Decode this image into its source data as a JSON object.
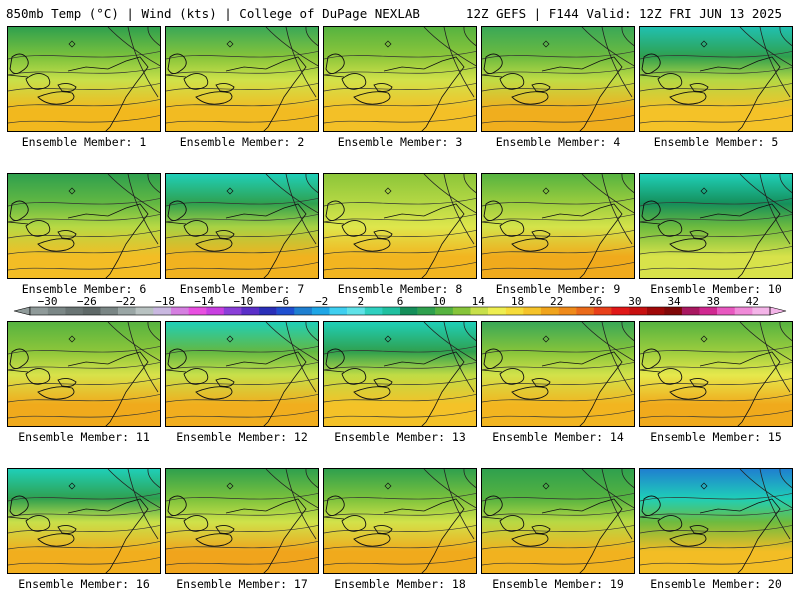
{
  "header": {
    "title": "850mb Temp (°C) | Wind (kts) | College of DuPage NEXLAB",
    "run": "12Z GEFS | F144 Valid: 12Z FRI JUN 13 2025"
  },
  "panels": [
    {
      "label": "Ensemble Member: 1",
      "north_color": "#2fa04e",
      "band1": "#7cc23c",
      "band2": "#c8e04a",
      "south_color": "#f2b81e"
    },
    {
      "label": "Ensemble Member: 2",
      "north_color": "#3aa857",
      "band1": "#86c43a",
      "band2": "#cfe24a",
      "south_color": "#f2bb22"
    },
    {
      "label": "Ensemble Member: 3",
      "north_color": "#56b340",
      "band1": "#8dc63a",
      "band2": "#d2e24a",
      "south_color": "#f3c027"
    },
    {
      "label": "Ensemble Member: 4",
      "north_color": "#3aa857",
      "band1": "#6dbb3f",
      "band2": "#c0dc45",
      "south_color": "#f0ae1e"
    },
    {
      "label": "Ensemble Member: 5",
      "north_color": "#20c0b0",
      "band1": "#2fa04e",
      "band2": "#b5d844",
      "south_color": "#f4c228"
    },
    {
      "label": "Ensemble Member: 6",
      "north_color": "#2fa04e",
      "band1": "#63b842",
      "band2": "#b8d944",
      "south_color": "#f3bd25"
    },
    {
      "label": "Ensemble Member: 7",
      "north_color": "#1fcfb8",
      "band1": "#2fa04e",
      "band2": "#a8d244",
      "south_color": "#f1b21f"
    },
    {
      "label": "Ensemble Member: 8",
      "north_color": "#8dc63a",
      "band1": "#b5d844",
      "band2": "#dfe64c",
      "south_color": "#f2b520"
    },
    {
      "label": "Ensemble Member: 9",
      "north_color": "#56b340",
      "band1": "#9ccd3e",
      "band2": "#d5e34a",
      "south_color": "#f0aa1c"
    },
    {
      "label": "Ensemble Member: 10",
      "north_color": "#1fcfb8",
      "band1": "#158f5a",
      "band2": "#6dbb3f",
      "south_color": "#d8e24a"
    },
    {
      "label": "Ensemble Member: 11",
      "north_color": "#56b340",
      "band1": "#8dc63a",
      "band2": "#d8e24a",
      "south_color": "#f0aa1c"
    },
    {
      "label": "Ensemble Member: 12",
      "north_color": "#1fcfb8",
      "band1": "#63b842",
      "band2": "#c8e04a",
      "south_color": "#f1ae1e"
    },
    {
      "label": "Ensemble Member: 13",
      "north_color": "#1fcfb8",
      "band1": "#2fa04e",
      "band2": "#c0dc45",
      "south_color": "#f4c228"
    },
    {
      "label": "Ensemble Member: 14",
      "north_color": "#3aa857",
      "band1": "#86c43a",
      "band2": "#d2e24a",
      "south_color": "#f2b520"
    },
    {
      "label": "Ensemble Member: 15",
      "north_color": "#56b340",
      "band1": "#9ccd3e",
      "band2": "#e6e84c",
      "south_color": "#f0aa1c"
    },
    {
      "label": "Ensemble Member: 16",
      "north_color": "#1fcfb8",
      "band1": "#2fa04e",
      "band2": "#c8e04a",
      "south_color": "#f1ae1e"
    },
    {
      "label": "Ensemble Member: 17",
      "north_color": "#2fa04e",
      "band1": "#7cc23c",
      "band2": "#cfe24a",
      "south_color": "#f0a41c"
    },
    {
      "label": "Ensemble Member: 18",
      "north_color": "#2fa04e",
      "band1": "#7cc23c",
      "band2": "#d2e24a",
      "south_color": "#f0aa1c"
    },
    {
      "label": "Ensemble Member: 19",
      "north_color": "#2fa04e",
      "band1": "#56b340",
      "band2": "#b8d944",
      "south_color": "#f1b21f"
    },
    {
      "label": "Ensemble Member: 20",
      "north_color": "#1f7fd0",
      "band1": "#1fcfb8",
      "band2": "#6dbb3f",
      "south_color": "#f3bd25"
    }
  ],
  "colorbar": {
    "labels": [
      "−30",
      "−26",
      "−22",
      "−18",
      "−14",
      "−10",
      "−6",
      "−2",
      "2",
      "6",
      "10",
      "14",
      "18",
      "22",
      "26",
      "30",
      "34",
      "38",
      "42"
    ],
    "colors": [
      "#8f9a99",
      "#7b8786",
      "#6a7574",
      "#5f6968",
      "#7a8685",
      "#9aa6a5",
      "#b8c2c1",
      "#c9b8e0",
      "#d57fe0",
      "#e84fe0",
      "#c83fe0",
      "#8a3fd8",
      "#5a2fc8",
      "#2a2fb8",
      "#1f4fd0",
      "#1f7fd0",
      "#1fa6e6",
      "#3fcff0",
      "#5fe2e8",
      "#2fd0c0",
      "#20c0a0",
      "#158f5a",
      "#2fa04e",
      "#56b340",
      "#86c43a",
      "#c8e04a",
      "#eeee50",
      "#f6dc3a",
      "#f5c32a",
      "#f0a41c",
      "#ef8a1a",
      "#ea6a1a",
      "#e8401a",
      "#e01818",
      "#c81010",
      "#a00808",
      "#800808",
      "#a81860",
      "#d02890",
      "#e858c0",
      "#f08ad8",
      "#f4b4e8"
    ]
  }
}
